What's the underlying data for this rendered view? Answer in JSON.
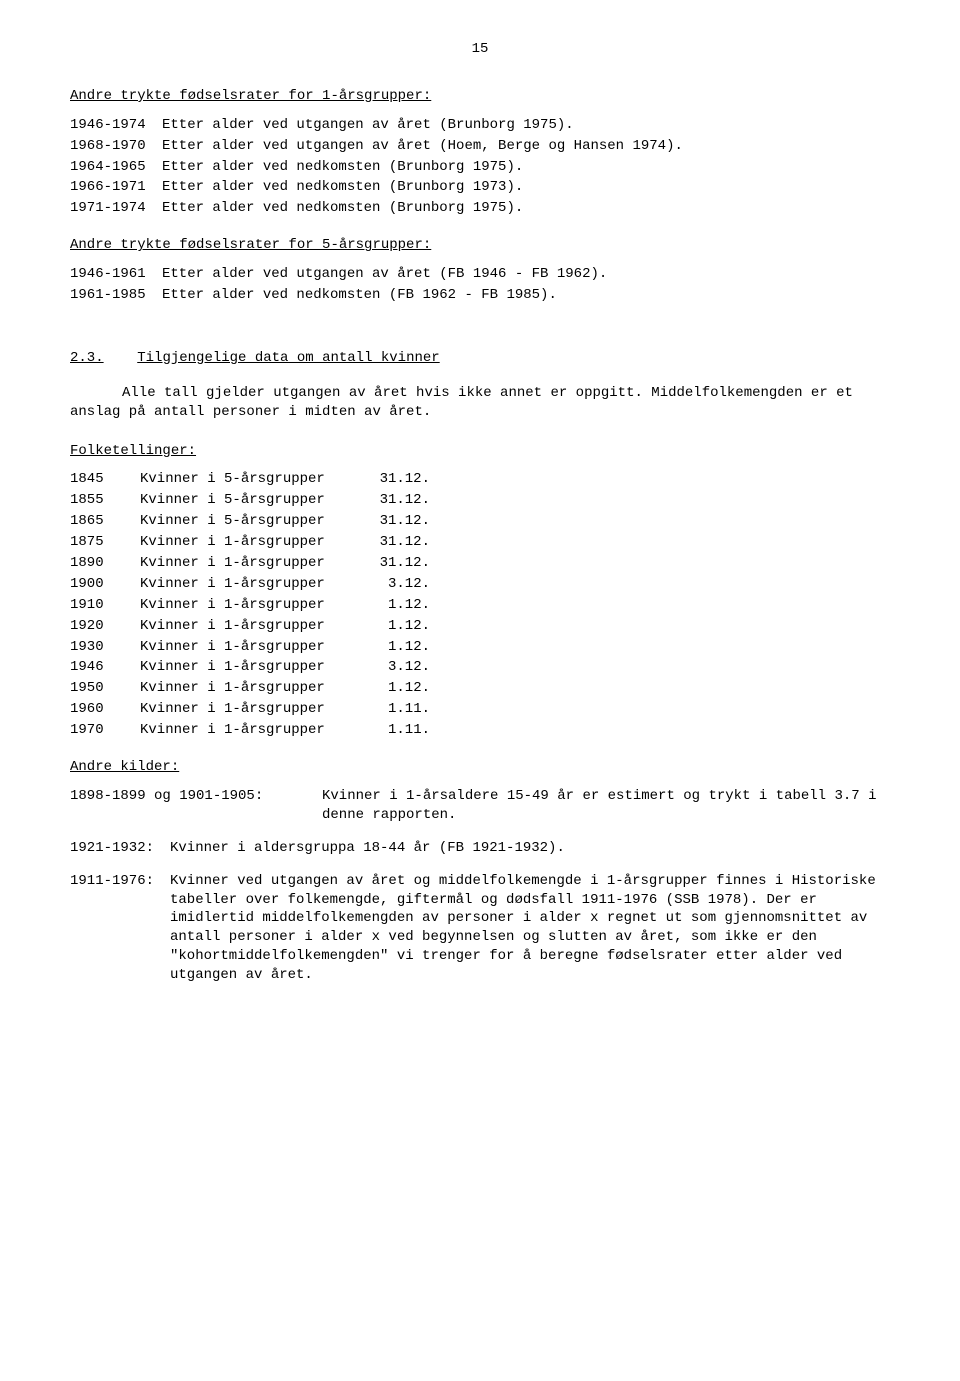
{
  "page_number": "15",
  "section1": {
    "heading": "Andre trykte fødselsrater for 1-årsgrupper:",
    "rows": [
      {
        "years": "1946-1974",
        "desc": "Etter alder ved utgangen av året (Brunborg 1975)."
      },
      {
        "years": "1968-1970",
        "desc": "Etter alder ved utgangen av året (Hoem, Berge og Hansen 1974)."
      },
      {
        "years": "1964-1965",
        "desc": "Etter alder ved nedkomsten (Brunborg 1975)."
      },
      {
        "years": "1966-1971",
        "desc": "Etter alder ved nedkomsten (Brunborg 1973)."
      },
      {
        "years": "1971-1974",
        "desc": "Etter alder ved nedkomsten (Brunborg 1975)."
      }
    ]
  },
  "section2": {
    "heading": "Andre trykte fødselsrater for 5-årsgrupper:",
    "rows": [
      {
        "years": "1946-1961",
        "desc": "Etter alder ved utgangen av året (FB 1946 - FB 1962)."
      },
      {
        "years": "1961-1985",
        "desc": "Etter alder ved nedkomsten (FB 1962 - FB 1985)."
      }
    ]
  },
  "section3": {
    "number": "2.3.",
    "title": "Tilgjengelige data om antall kvinner",
    "para": "Alle tall gjelder utgangen av året hvis ikke annet er oppgitt. Middelfolkemengden er et anslag på antall personer i midten av året."
  },
  "census": {
    "heading": "Folketellinger:",
    "rows": [
      {
        "year": "1845",
        "desc": "Kvinner i 5-årsgrupper",
        "date": "31.12."
      },
      {
        "year": "1855",
        "desc": "Kvinner i 5-årsgrupper",
        "date": "31.12."
      },
      {
        "year": "1865",
        "desc": "Kvinner i 5-årsgrupper",
        "date": "31.12."
      },
      {
        "year": "1875",
        "desc": "Kvinner i 1-årsgrupper",
        "date": "31.12."
      },
      {
        "year": "1890",
        "desc": "Kvinner i 1-årsgrupper",
        "date": "31.12."
      },
      {
        "year": "1900",
        "desc": "Kvinner i 1-årsgrupper",
        "date": "3.12."
      },
      {
        "year": "1910",
        "desc": "Kvinner i 1-årsgrupper",
        "date": "1.12."
      },
      {
        "year": "1920",
        "desc": "Kvinner i 1-årsgrupper",
        "date": "1.12."
      },
      {
        "year": "1930",
        "desc": "Kvinner i 1-årsgrupper",
        "date": "1.12."
      },
      {
        "year": "1946",
        "desc": "Kvinner i 1-årsgrupper",
        "date": "3.12."
      },
      {
        "year": "1950",
        "desc": "Kvinner i 1-årsgrupper",
        "date": "1.12."
      },
      {
        "year": "1960",
        "desc": "Kvinner i 1-årsgrupper",
        "date": "1.11."
      },
      {
        "year": "1970",
        "desc": "Kvinner i 1-årsgrupper",
        "date": "1.11."
      }
    ]
  },
  "other_sources": {
    "heading": "Andre kilder:",
    "items": [
      {
        "label": "1898-1899 og 1901-1905:",
        "body": "Kvinner i 1-årsaldere 15-49 år er estimert og trykt i tabell 3.7 i denne rapporten."
      },
      {
        "label": "1921-1932:",
        "body": "Kvinner i aldersgruppa 18-44 år (FB 1921-1932)."
      },
      {
        "label": "1911-1976:",
        "body": "Kvinner ved utgangen av året og middelfolkemengde i 1-årsgrupper finnes i Historiske tabeller over folkemengde, giftermål og dødsfall 1911-1976 (SSB 1978). Der er imidlertid middelfolkemengden av personer i alder x regnet ut som gjennomsnittet av antall personer i alder x ved begynnelsen og slutten av året, som ikke er den \"kohortmiddelfolkemengden\" vi trenger for å beregne fødselsrater etter alder ved utgangen av året."
      }
    ]
  }
}
